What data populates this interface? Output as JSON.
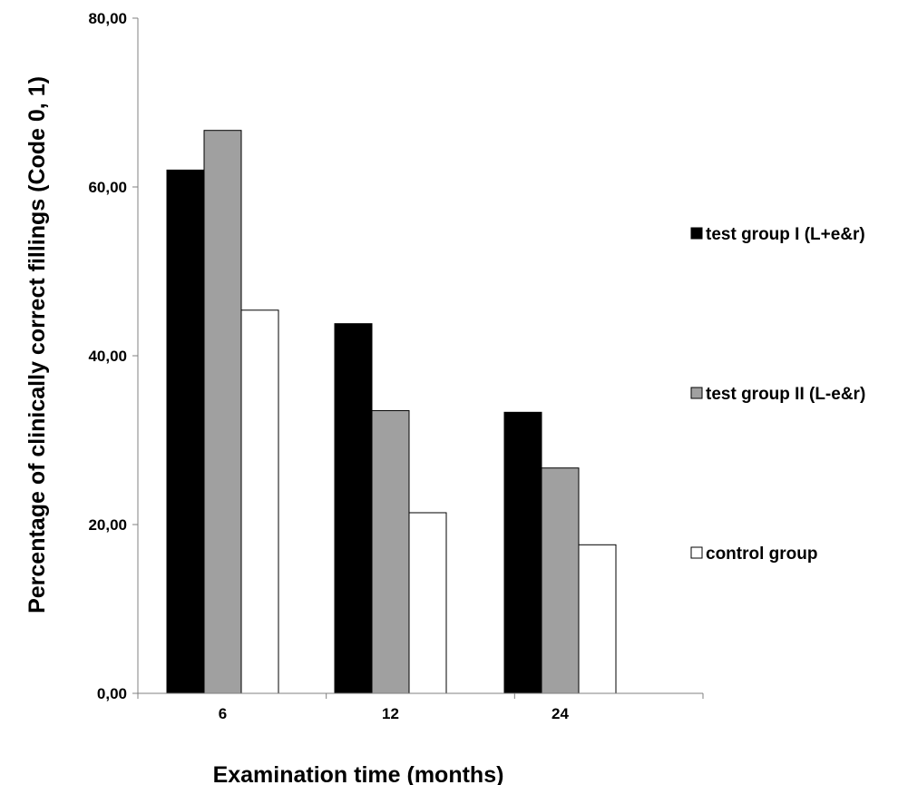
{
  "chart_data": {
    "type": "bar",
    "categories": [
      "6",
      "12",
      "24"
    ],
    "series": [
      {
        "name": "test group I (L+e&r)",
        "values": [
          62.0,
          43.8,
          33.3
        ],
        "color": "#000000"
      },
      {
        "name": "test group II (L-e&r)",
        "values": [
          66.7,
          33.5,
          26.7
        ],
        "color": "#a0a0a0"
      },
      {
        "name": "control group",
        "values": [
          45.4,
          21.4,
          17.6
        ],
        "color": "#ffffff"
      }
    ],
    "xlabel": "Examination time (months)",
    "ylabel": "Percentage of clinically correct fillings (Code 0, 1)",
    "ylim": [
      0,
      80
    ],
    "yticks": [
      0,
      20,
      40,
      60,
      80
    ],
    "ytick_labels": [
      "0,00",
      "20,00",
      "40,00",
      "60,00",
      "80,00"
    ],
    "grid": false,
    "legend_position": "right"
  }
}
